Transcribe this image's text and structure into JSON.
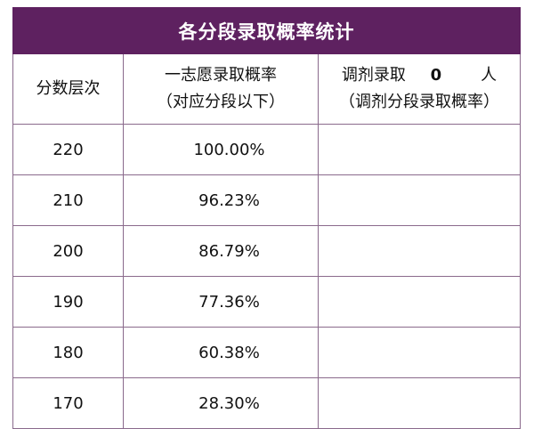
{
  "table": {
    "title": "各分段录取概率统计",
    "headers": {
      "col1": "分数层次",
      "col2_line1": "一志愿录取概率",
      "col2_line2": "（对应分段以下）",
      "col3_prefix": "调剂录取",
      "col3_count": "0",
      "col3_suffix": "人",
      "col3_line2": "（调剂分段录取概率）"
    },
    "rows": [
      {
        "score": "220",
        "rate": "100.00%",
        "adjust": ""
      },
      {
        "score": "210",
        "rate": "96.23%",
        "adjust": ""
      },
      {
        "score": "200",
        "rate": "86.79%",
        "adjust": ""
      },
      {
        "score": "190",
        "rate": "77.36%",
        "adjust": ""
      },
      {
        "score": "180",
        "rate": "60.38%",
        "adjust": ""
      },
      {
        "score": "170",
        "rate": "28.30%",
        "adjust": ""
      }
    ]
  }
}
